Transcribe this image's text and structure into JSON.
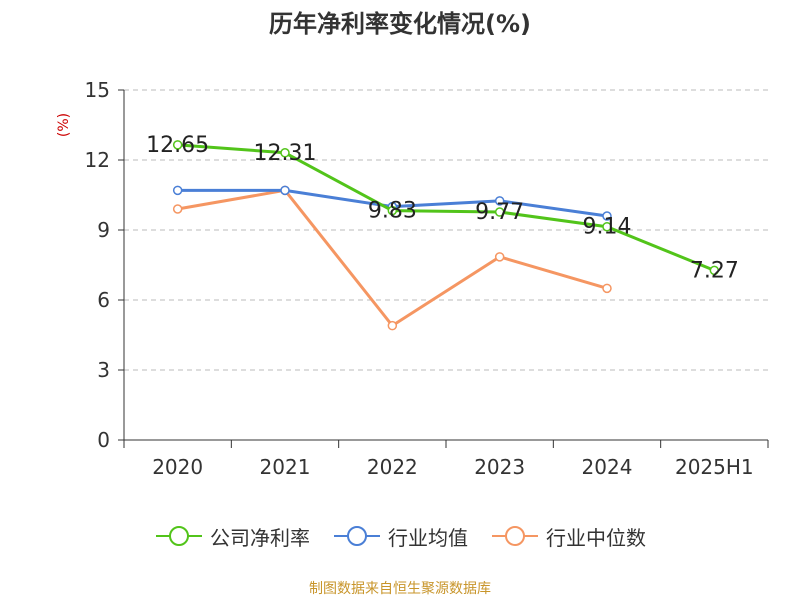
{
  "title": "历年净利率变化情况(%)",
  "source": "制图数据来自恒生聚源数据库",
  "chart_data": {
    "type": "line",
    "title": "历年净利率变化情况(%)",
    "ylabel": "(%)",
    "xlabel": "",
    "categories": [
      "2020",
      "2021",
      "2022",
      "2023",
      "2024",
      "2025H1"
    ],
    "ylim": [
      0,
      15
    ],
    "yticks": [
      0,
      3,
      6,
      9,
      12,
      15
    ],
    "grid": "horizontal dashed",
    "legend_position": "bottom",
    "series": [
      {
        "name": "公司净利率",
        "color": "#52c41a",
        "values": [
          12.65,
          12.31,
          9.83,
          9.77,
          9.14,
          7.27
        ],
        "labels": [
          "12.65",
          "12.31",
          "9.83",
          "9.77",
          "9.14",
          "7.27"
        ]
      },
      {
        "name": "行业均值",
        "color": "#4a7fd6",
        "values": [
          10.7,
          10.7,
          10.0,
          10.25,
          9.6,
          null
        ]
      },
      {
        "name": "行业中位数",
        "color": "#f59662",
        "values": [
          9.9,
          10.7,
          4.9,
          7.85,
          6.5,
          null
        ]
      }
    ]
  }
}
